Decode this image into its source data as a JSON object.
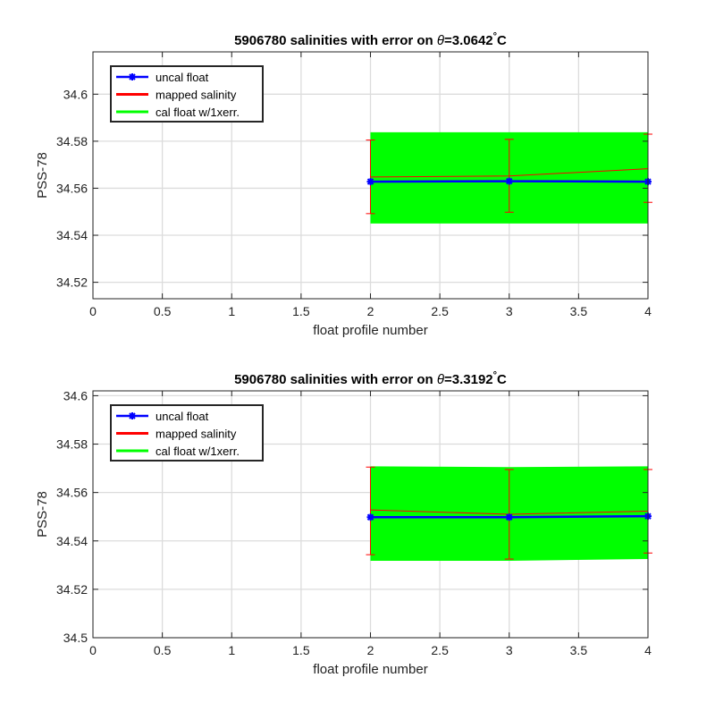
{
  "chart_data": [
    {
      "type": "line",
      "title": "5906780 salinities with error on θ=3.0642°C",
      "title_prefix": "5906780 salinities with error on ",
      "title_theta": "θ",
      "title_value": "=3.0642",
      "title_deg": "°",
      "title_unit": "C",
      "xlabel": "float profile number",
      "ylabel": "PSS-78",
      "xlim": [
        0,
        4
      ],
      "ylim": [
        34.513,
        34.618
      ],
      "xticks": [
        0,
        0.5,
        1,
        1.5,
        2,
        2.5,
        3,
        3.5,
        4
      ],
      "xtick_labels": [
        "0",
        "0.5",
        "1",
        "1.5",
        "2",
        "2.5",
        "3",
        "3.5",
        "4"
      ],
      "yticks": [
        34.52,
        34.54,
        34.56,
        34.58,
        34.6
      ],
      "ytick_labels": [
        "34.52",
        "34.54",
        "34.56",
        "34.58",
        "34.6"
      ],
      "grid": true,
      "legend_position": "top-left",
      "x": [
        2,
        3,
        4
      ],
      "series": [
        {
          "name": "uncal float",
          "color": "#0000ff",
          "values": [
            34.5628,
            34.563,
            34.5628
          ]
        },
        {
          "name": "mapped salinity",
          "color": "#ff0000",
          "values": [
            34.5648,
            34.5652,
            34.5683
          ],
          "error_low": [
            34.5492,
            34.5498,
            34.554
          ],
          "error_high": [
            34.5805,
            34.5808,
            34.583
          ]
        },
        {
          "name": "cal float w/1xerr.",
          "color": "#00ff00",
          "band_low": [
            34.545,
            34.545,
            34.545
          ],
          "band_high": [
            34.5838,
            34.5838,
            34.5838
          ]
        }
      ]
    },
    {
      "type": "line",
      "title": "5906780 salinities with error on θ=3.3192°C",
      "title_prefix": "5906780 salinities with error on ",
      "title_theta": "θ",
      "title_value": "=3.3192",
      "title_deg": "°",
      "title_unit": "C",
      "xlabel": "float profile number",
      "ylabel": "PSS-78",
      "xlim": [
        0,
        4
      ],
      "ylim": [
        34.5,
        34.602
      ],
      "xticks": [
        0,
        0.5,
        1,
        1.5,
        2,
        2.5,
        3,
        3.5,
        4
      ],
      "xtick_labels": [
        "0",
        "0.5",
        "1",
        "1.5",
        "2",
        "2.5",
        "3",
        "3.5",
        "4"
      ],
      "yticks": [
        34.5,
        34.52,
        34.54,
        34.56,
        34.58,
        34.6
      ],
      "ytick_labels": [
        "34.5",
        "34.52",
        "34.54",
        "34.56",
        "34.58",
        "34.6"
      ],
      "grid": true,
      "legend_position": "top-left",
      "x": [
        2,
        3,
        4
      ],
      "series": [
        {
          "name": "uncal float",
          "color": "#0000ff",
          "values": [
            34.5498,
            34.5498,
            34.5502
          ]
        },
        {
          "name": "mapped salinity",
          "color": "#ff0000",
          "values": [
            34.5528,
            34.551,
            34.5523
          ],
          "error_low": [
            34.5343,
            34.5325,
            34.535
          ],
          "error_high": [
            34.5705,
            34.5695,
            34.5695
          ]
        },
        {
          "name": "cal float w/1xerr.",
          "color": "#00ff00",
          "band_low": [
            34.5318,
            34.5318,
            34.5325
          ],
          "band_high": [
            34.5708,
            34.5705,
            34.5708
          ]
        }
      ]
    }
  ]
}
